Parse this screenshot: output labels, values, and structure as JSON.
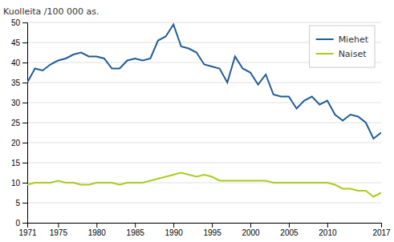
{
  "chart_data": {
    "type": "line",
    "ylabel": "Kuolleita /100 000 as.",
    "x": [
      1971,
      1972,
      1973,
      1974,
      1975,
      1976,
      1977,
      1978,
      1979,
      1980,
      1981,
      1982,
      1983,
      1984,
      1985,
      1986,
      1987,
      1988,
      1989,
      1990,
      1991,
      1992,
      1993,
      1994,
      1995,
      1996,
      1997,
      1998,
      1999,
      2000,
      2001,
      2002,
      2003,
      2004,
      2005,
      2006,
      2007,
      2008,
      2009,
      2010,
      2011,
      2012,
      2013,
      2014,
      2015,
      2016,
      2017
    ],
    "series": [
      {
        "name": "Miehet",
        "color": "#1F5C99",
        "values": [
          35.0,
          38.5,
          38.0,
          39.5,
          40.5,
          41.0,
          42.0,
          42.5,
          41.5,
          41.5,
          41.0,
          38.5,
          38.5,
          40.5,
          41.0,
          40.5,
          41.0,
          45.5,
          46.5,
          49.5,
          44.0,
          43.5,
          42.5,
          39.5,
          39.0,
          38.5,
          35.0,
          41.5,
          38.5,
          37.5,
          34.5,
          37.0,
          32.0,
          31.5,
          31.5,
          28.5,
          30.5,
          31.5,
          29.5,
          30.5,
          27.0,
          25.5,
          27.0,
          26.5,
          25.0,
          21.0,
          22.5
        ]
      },
      {
        "name": "Naiset",
        "color": "#AACC22",
        "values": [
          9.5,
          10.0,
          10.0,
          10.0,
          10.5,
          10.0,
          10.0,
          9.5,
          9.5,
          10.0,
          10.0,
          10.0,
          9.5,
          10.0,
          10.0,
          10.0,
          10.5,
          11.0,
          11.5,
          12.0,
          12.5,
          12.0,
          11.5,
          12.0,
          11.5,
          10.5,
          10.5,
          10.5,
          10.5,
          10.5,
          10.5,
          10.5,
          10.0,
          10.0,
          10.0,
          10.0,
          10.0,
          10.0,
          10.0,
          10.0,
          9.5,
          8.5,
          8.5,
          8.0,
          8.0,
          6.5,
          7.5
        ]
      }
    ],
    "xlim": [
      1971,
      2017
    ],
    "xticks": [
      1971,
      1975,
      1980,
      1985,
      1990,
      1995,
      2000,
      2005,
      2010,
      2017
    ],
    "ylim": [
      0,
      50
    ],
    "yticks": [
      0,
      5,
      10,
      15,
      20,
      25,
      30,
      35,
      40,
      45,
      50
    ],
    "grid": "y",
    "legend": "upper right"
  }
}
